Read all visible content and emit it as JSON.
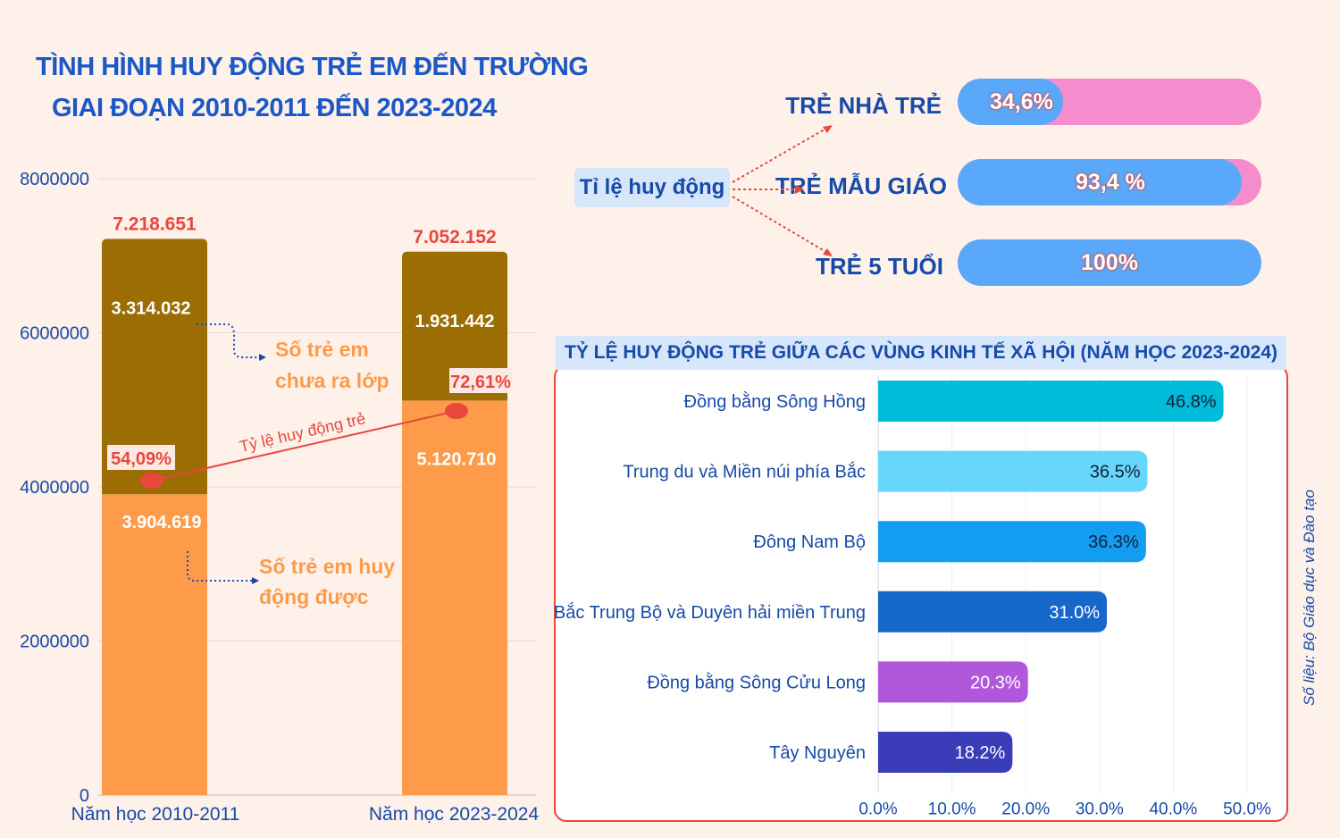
{
  "title": {
    "line1": "TÌNH HÌNH HUY ĐỘNG TRẺ EM ĐẾN TRƯỜNG",
    "line2": "GIAI ĐOẠN 2010-2011 ĐẾN 2023-2024"
  },
  "chart_data": [
    {
      "type": "bar",
      "stacked": true,
      "categories": [
        "Năm học 2010-2011",
        "Năm học 2023-2024"
      ],
      "series": [
        {
          "name": "Số trẻ em huy động được",
          "values": [
            3904619,
            5120710
          ],
          "labels": [
            "3.904.619",
            "5.120.710"
          ],
          "color": "#fe9b4b"
        },
        {
          "name": "Số trẻ em chưa ra lớp",
          "values": [
            3314032,
            1931442
          ],
          "labels": [
            "3.314.032",
            "1.931.442"
          ],
          "color": "#9c6d03"
        }
      ],
      "totals": [
        7218651,
        7052152
      ],
      "total_labels": [
        "7.218.651",
        "7.052.152"
      ],
      "rate_line": {
        "name": "Tỷ lệ huy động trẻ",
        "values": [
          54.09,
          72.61
        ],
        "labels": [
          "54,09%",
          "72,61%"
        ]
      },
      "yticks": [
        "8000000",
        "6000000",
        "4000000",
        "2000000",
        "0"
      ],
      "ylim": [
        0,
        8000000
      ],
      "grid": true,
      "annotation_unenrolled": [
        "Số trẻ em",
        "chưa ra lớp"
      ],
      "annotation_enrolled": [
        "Số trẻ em huy",
        "động được"
      ]
    },
    {
      "type": "bar",
      "orientation": "horizontal",
      "title": "TỶ LỆ HUY ĐỘNG TRẺ GIỮA CÁC VÙNG KINH TẾ XÃ HỘI (NĂM HỌC 2023-2024)",
      "categories": [
        "Đồng bằng Sông Hồng",
        "Trung du và Miền núi phía Bắc",
        "Đông Nam Bộ",
        "Bắc Trung Bộ và Duyên hải miền Trung",
        "Đồng bằng Sông Cửu Long",
        "Tây Nguyên"
      ],
      "values": [
        46.8,
        36.5,
        36.3,
        31.0,
        20.3,
        18.2
      ],
      "labels": [
        "46.8%",
        "36.5%",
        "36.3%",
        "31.0%",
        "20.3%",
        "18.2%"
      ],
      "colors": [
        "#00bcd9",
        "#66d6fb",
        "#139df0",
        "#1567c9",
        "#b257dc",
        "#3b3cb8"
      ],
      "xticks": [
        "0.0%",
        "10.0%",
        "20.0%",
        "30.0%",
        "40.0%",
        "50.0%"
      ],
      "xlim": [
        0,
        50
      ],
      "grid": true
    }
  ],
  "rates": {
    "source_label": "Tỉ lệ huy động",
    "items": [
      {
        "label": "TRẺ NHÀ TRẺ",
        "value": 34.6,
        "display": "34,6%"
      },
      {
        "label": "TRẺ MẪU GIÁO",
        "value": 93.4,
        "display": "93,4 %"
      },
      {
        "label": "TRẺ 5 TUỔI",
        "value": 100,
        "display": "100%"
      }
    ]
  },
  "source": "Số liệu: Bộ Giáo dục và Đào tạo",
  "colors": {
    "accent_red": "#e8473c",
    "title_blue": "#1a57c7",
    "pill_pink": "#f48ccd",
    "pill_blue": "#5aa8f9"
  }
}
